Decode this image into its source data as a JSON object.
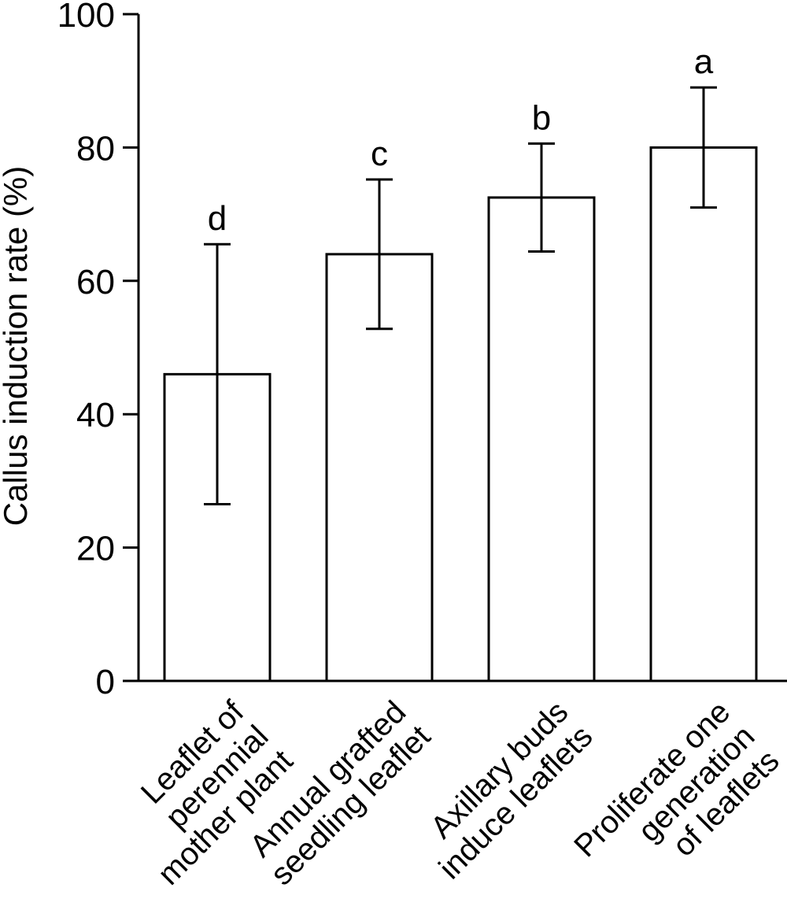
{
  "chart_data": {
    "type": "bar",
    "title": "",
    "xlabel": "",
    "ylabel": "Callus induction rate (%)",
    "ylim": [
      0,
      100
    ],
    "yticks": [
      0,
      20,
      40,
      60,
      80,
      100
    ],
    "categories": [
      [
        "Leaflet of",
        "perennial",
        "mother plant"
      ],
      [
        "Annual grafted",
        "seedling leaflet"
      ],
      [
        "Axillary buds",
        "induce leaflets"
      ],
      [
        "Proliferate one",
        "generation",
        "of leaflets"
      ]
    ],
    "series": [
      {
        "values": [
          46,
          64,
          72.5,
          80
        ],
        "error": [
          19.5,
          11.2,
          8.1,
          9
        ]
      }
    ],
    "significance": [
      "d",
      "c",
      "b",
      "a"
    ],
    "grid": false,
    "legend": "none",
    "colors": {
      "bar_fill": "#ffffff",
      "stroke": "#000000"
    }
  }
}
